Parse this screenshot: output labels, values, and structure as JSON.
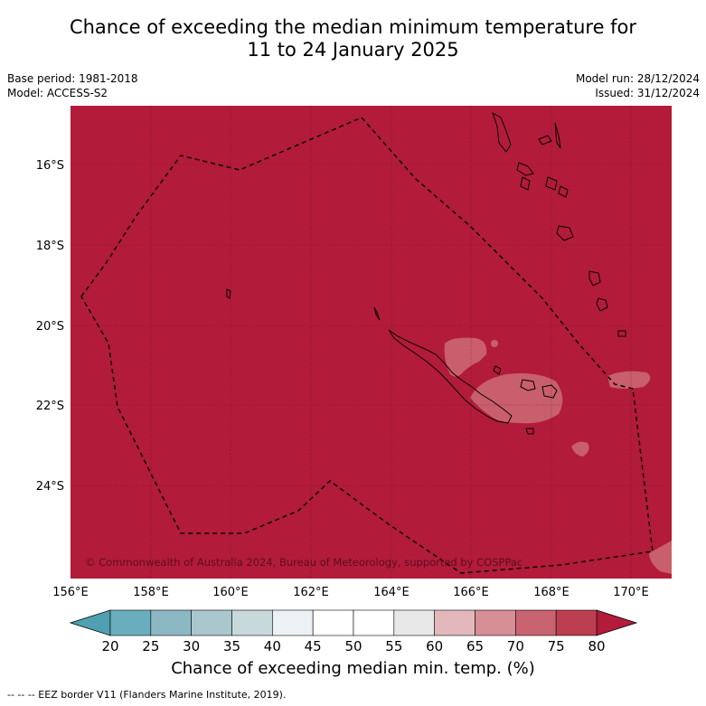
{
  "title": {
    "line1": "Chance of exceeding the median minimum temperature for",
    "line2": "11 to 24 January 2025"
  },
  "meta": {
    "base_period": "Base period: 1981-2018",
    "model": "Model: ACCESS-S2",
    "model_run": "Model run: 28/12/2024",
    "issued": "Issued: 31/12/2024"
  },
  "map": {
    "lon_range": [
      156,
      171
    ],
    "lat_range": [
      -26.1,
      -14.6
    ],
    "lon_ticks": [
      "156°E",
      "158°E",
      "160°E",
      "162°E",
      "164°E",
      "166°E",
      "168°E",
      "170°E"
    ],
    "lat_ticks": [
      "16°S",
      "18°S",
      "20°S",
      "22°S",
      "24°S"
    ],
    "background_color": "#b31b3a",
    "copyright": "© Commonwealth of Australia 2024, Bureau of Meteorology, supported by COSPPac"
  },
  "colorbar": {
    "ticks": [
      "20",
      "25",
      "30",
      "35",
      "40",
      "45",
      "50",
      "55",
      "60",
      "65",
      "70",
      "75",
      "80"
    ],
    "colors": [
      "#6aaebd",
      "#8cb8c3",
      "#a9c7cd",
      "#c8d9dc",
      "#ecf2f3",
      "#ffffff",
      "#ffffff",
      "#e8e8e8",
      "#e2b8bd",
      "#d68e97",
      "#c96370",
      "#bd3e50"
    ],
    "low_color": "#4fa1b2",
    "high_color": "#b31b3a",
    "label": "Chance of exceeding median min. temp. (%)"
  },
  "footnote": "--  --  -- EEZ border V11 (Flanders Marine Institute, 2019)."
}
